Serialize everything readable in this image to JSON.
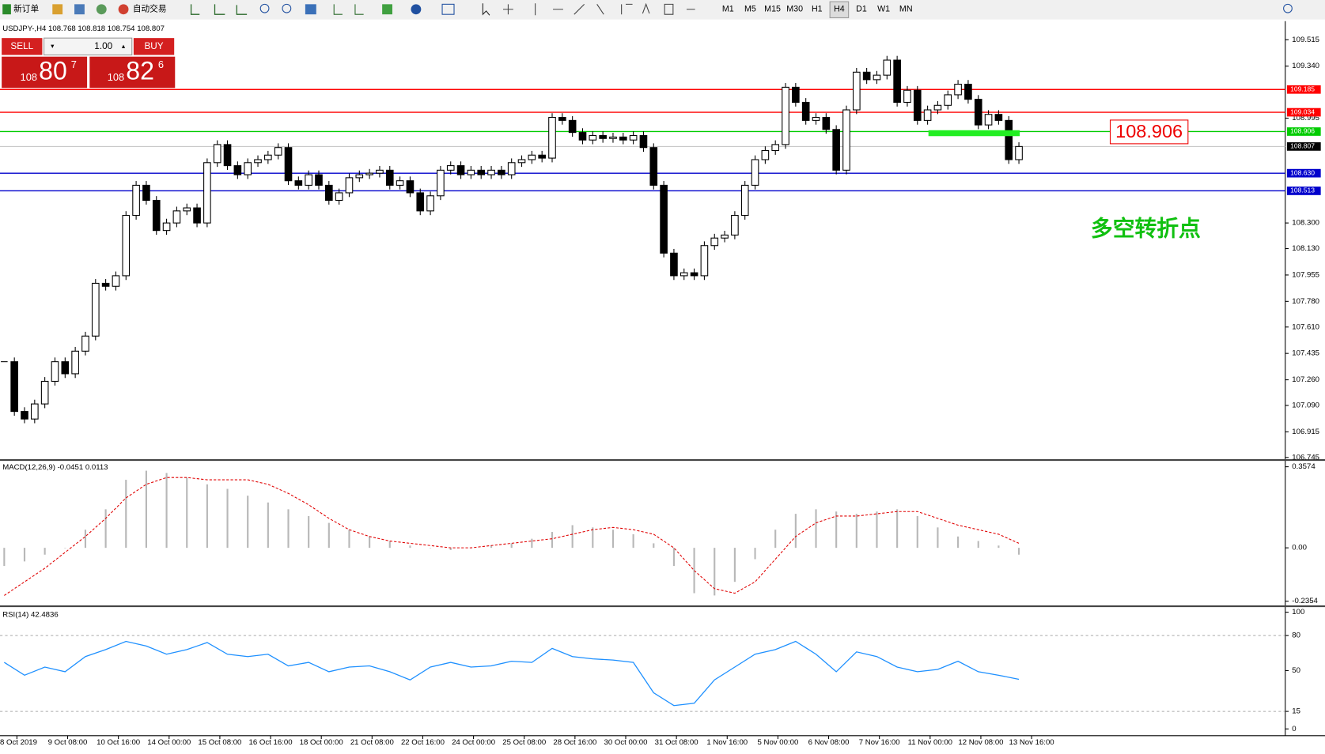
{
  "toolbar": {
    "new_order": "新订单",
    "auto_trading": "自动交易",
    "timeframes": [
      "M1",
      "M5",
      "M15",
      "M30",
      "H1",
      "H4",
      "D1",
      "W1",
      "MN"
    ],
    "active_timeframe": "H4"
  },
  "trade_panel": {
    "sell": "SELL",
    "buy": "BUY",
    "volume": "1.00",
    "bid_big": "108",
    "bid_main": "80",
    "bid_sup": "7",
    "ask_big": "108",
    "ask_main": "82",
    "ask_sup": "6"
  },
  "main_chart": {
    "header": "USDJPY-,H4  108.768 108.818 108.754 108.807",
    "ylim": [
      106.745,
      109.515
    ],
    "yticks": [
      109.515,
      {
        "value": 109.34,
        "label": "109.340"
      },
      108.995,
      {
        "value": 108.3,
        "label": "108.300"
      },
      {
        "value": 108.13,
        "label": "108.130"
      },
      107.955,
      {
        "value": 107.78,
        "label": "107.780"
      },
      {
        "value": 107.61,
        "label": "107.610"
      },
      107.435,
      {
        "value": 107.26,
        "label": "107.260"
      },
      {
        "value": 107.09,
        "label": "107.090"
      },
      106.915,
      106.745
    ],
    "closes": [
      107.38,
      107.05,
      107.0,
      107.1,
      107.25,
      107.38,
      107.3,
      107.45,
      107.55,
      107.9,
      107.88,
      107.95,
      108.35,
      108.55,
      108.45,
      108.25,
      108.3,
      108.38,
      108.4,
      108.3,
      108.7,
      108.82,
      108.68,
      108.62,
      108.7,
      108.72,
      108.75,
      108.8,
      108.58,
      108.55,
      108.62,
      108.55,
      108.45,
      108.5,
      108.6,
      108.62,
      108.63,
      108.65,
      108.55,
      108.58,
      108.5,
      108.38,
      108.48,
      108.65,
      108.68,
      108.62,
      108.65,
      108.62,
      108.65,
      108.62,
      108.7,
      108.72,
      108.75,
      108.73,
      109.0,
      108.98,
      108.9,
      108.85,
      108.88,
      108.86,
      108.87,
      108.85,
      108.88,
      108.8,
      108.55,
      108.1,
      107.95,
      107.97,
      107.95,
      108.15,
      108.2,
      108.22,
      108.35,
      108.55,
      108.72,
      108.78,
      108.82,
      109.2,
      109.1,
      108.98,
      109.0,
      108.92,
      108.65,
      109.05,
      109.3,
      109.25,
      109.28,
      109.38,
      109.1,
      109.18,
      108.98,
      109.05,
      109.08,
      109.15,
      109.22,
      109.12,
      108.95,
      109.02,
      108.98,
      108.72,
      108.807
    ],
    "current_price": 108.807,
    "levels": [
      {
        "price": 109.185,
        "color": "#ff0000"
      },
      {
        "price": 109.034,
        "color": "#ff0000"
      },
      {
        "price": 108.906,
        "color": "#00cc00"
      },
      {
        "price": {
          "value": 108.63,
          "label": "108.630"
        },
        "color": "#0000cc"
      },
      {
        "price": 108.513,
        "color": "#0000cc"
      }
    ],
    "annotation_box": "108.906",
    "annotation_text": "多空转折点",
    "x_labels": [
      "8 Oct 2019",
      "9 Oct 08:00",
      "10 Oct 16:00",
      "14 Oct 00:00",
      "15 Oct 08:00",
      "16 Oct 16:00",
      "18 Oct 00:00",
      "21 Oct 08:00",
      "22 Oct 16:00",
      "24 Oct 00:00",
      "25 Oct 08:00",
      "28 Oct 16:00",
      "30 Oct 00:00",
      "31 Oct 08:00",
      "1 Nov 16:00",
      "5 Nov 00:00",
      "6 Nov 08:00",
      "7 Nov 16:00",
      "11 Nov 00:00",
      "12 Nov 08:00",
      "13 Nov 16:00"
    ]
  },
  "macd": {
    "label": "MACD(12,26,9) -0.0451 0.0113",
    "ylim": [
      -0.2354,
      0.3574
    ],
    "yticks": [
      0.3574,
      {
        "value": 0,
        "label": "0.00"
      },
      -0.2354
    ],
    "histogram": [
      -0.08,
      -0.06,
      -0.03,
      0.0,
      0.08,
      0.17,
      0.3,
      0.34,
      0.33,
      0.31,
      0.28,
      0.26,
      0.23,
      0.2,
      0.17,
      0.14,
      0.11,
      0.08,
      0.05,
      0.03,
      0.01,
      0.0,
      -0.01,
      0.0,
      0.01,
      0.02,
      0.04,
      0.07,
      0.1,
      0.09,
      0.08,
      0.06,
      0.02,
      -0.08,
      -0.2,
      -0.21,
      -0.15,
      -0.05,
      0.08,
      0.15,
      0.17,
      0.16,
      0.15,
      0.16,
      0.17,
      0.14,
      0.09,
      0.05,
      0.03,
      0.01,
      -0.03
    ],
    "signal": [
      -0.21,
      -0.15,
      -0.09,
      -0.02,
      0.05,
      0.13,
      0.22,
      0.28,
      0.31,
      0.31,
      0.3,
      0.3,
      0.3,
      0.28,
      0.24,
      0.19,
      0.13,
      0.08,
      0.05,
      0.03,
      0.02,
      0.01,
      0.0,
      0.0,
      0.01,
      0.02,
      0.03,
      0.04,
      0.06,
      0.08,
      0.09,
      0.08,
      0.06,
      0.0,
      -0.1,
      -0.18,
      -0.2,
      -0.15,
      -0.05,
      0.05,
      0.11,
      0.14,
      0.14,
      0.15,
      0.16,
      0.16,
      0.13,
      0.1,
      0.08,
      0.06,
      0.02
    ]
  },
  "rsi": {
    "label": "RSI(14) 42.4836",
    "ylim": [
      0,
      100
    ],
    "yticks": [
      100,
      80,
      50,
      15,
      0
    ],
    "values": [
      57,
      46,
      53,
      49,
      62,
      68,
      75,
      71,
      64,
      68,
      74,
      64,
      62,
      64,
      54,
      57,
      49,
      53,
      54,
      49,
      42,
      53,
      57,
      53,
      54,
      58,
      57,
      69,
      62,
      60,
      59,
      57,
      31,
      20,
      22,
      42,
      53,
      64,
      68,
      75,
      64,
      49,
      66,
      62,
      53,
      49,
      51,
      58,
      49,
      46,
      42.4836
    ]
  }
}
